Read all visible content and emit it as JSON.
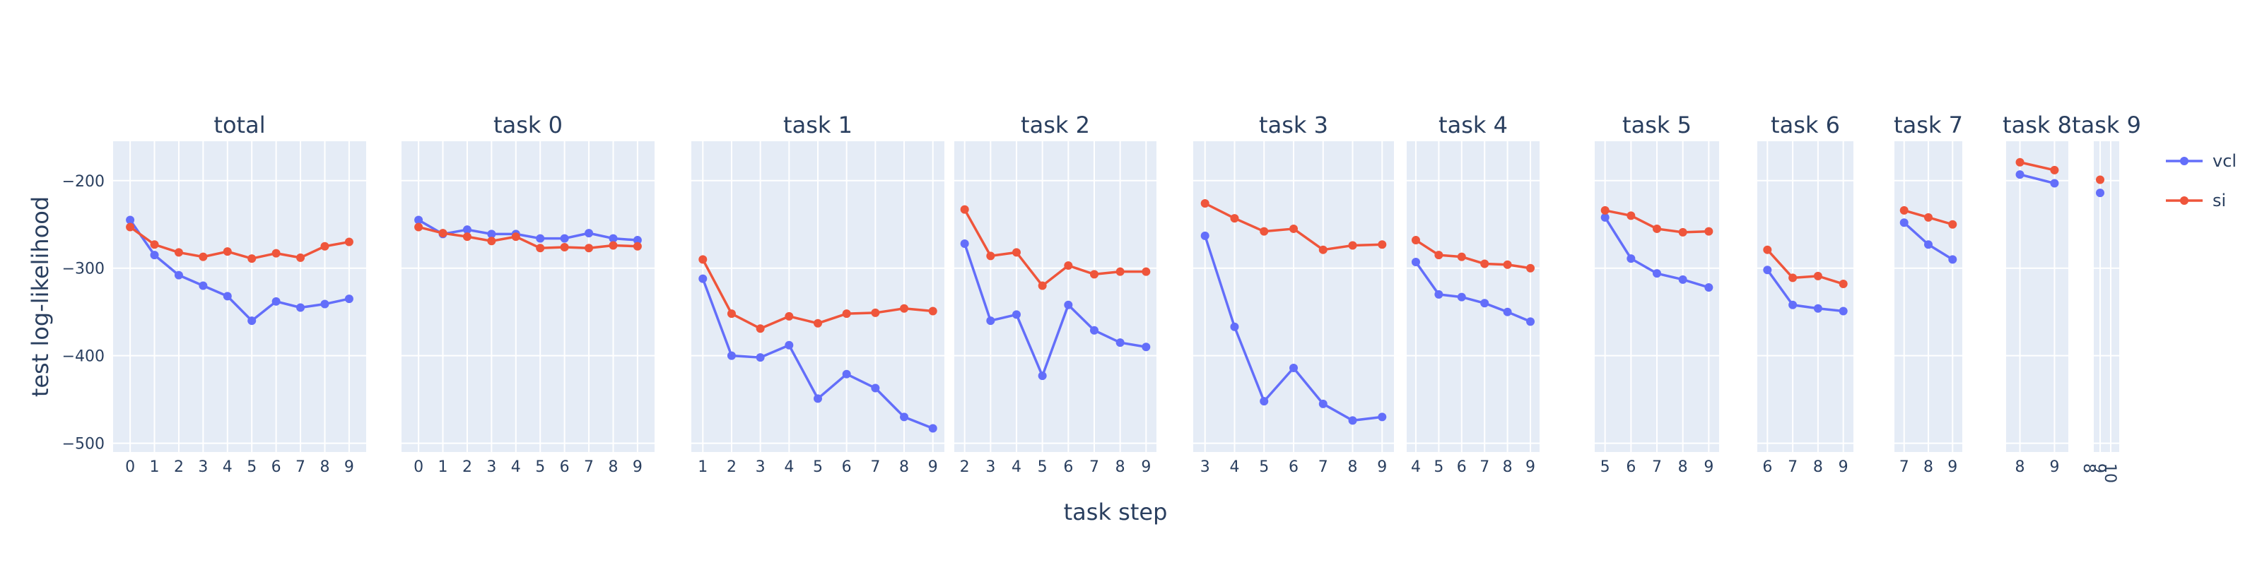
{
  "chart_data": {
    "type": "line",
    "xlabel": "task step",
    "ylabel": "test log-likelihood",
    "ylim": [
      -510,
      -155
    ],
    "yticks": [
      -200,
      -300,
      -400,
      -500
    ],
    "ytick_labels": [
      "−200",
      "−300",
      "−400",
      "−500"
    ],
    "grid": true,
    "legend_position": "top-right",
    "legend": [
      {
        "name": "vcl",
        "color": "#636efa"
      },
      {
        "name": "si",
        "color": "#ef553b"
      }
    ],
    "colors": {
      "vcl": "#636efa",
      "si": "#ef553b",
      "plot_bg": "#e5ecf6",
      "grid": "#ffffff",
      "text": "#2a3f5f"
    },
    "panels": [
      {
        "title": "total",
        "x": [
          0,
          1,
          2,
          3,
          4,
          5,
          6,
          7,
          8,
          9
        ],
        "series": [
          {
            "name": "vcl",
            "values": [
              -245,
              -285,
              -308,
              -320,
              -332,
              -360,
              -338,
              -345,
              -341,
              -335
            ]
          },
          {
            "name": "si",
            "values": [
              -253,
              -273,
              -282,
              -287,
              -281,
              -289,
              -283,
              -288,
              -275,
              -270
            ]
          }
        ]
      },
      {
        "title": "task 0",
        "x": [
          0,
          1,
          2,
          3,
          4,
          5,
          6,
          7,
          8,
          9
        ],
        "series": [
          {
            "name": "vcl",
            "values": [
              -245,
              -261,
              -256,
              -261,
              -261,
              -266,
              -266,
              -260,
              -266,
              -268
            ]
          },
          {
            "name": "si",
            "values": [
              -253,
              -260,
              -264,
              -269,
              -264,
              -277,
              -276,
              -277,
              -274,
              -275
            ]
          }
        ]
      },
      {
        "title": "task 1",
        "x": [
          1,
          2,
          3,
          4,
          5,
          6,
          7,
          8,
          9
        ],
        "series": [
          {
            "name": "vcl",
            "values": [
              -312,
              -400,
              -402,
              -388,
              -449,
              -421,
              -437,
              -470,
              -483
            ]
          },
          {
            "name": "si",
            "values": [
              -290,
              -352,
              -369,
              -355,
              -363,
              -352,
              -351,
              -346,
              -349
            ]
          }
        ]
      },
      {
        "title": "task 2",
        "x": [
          2,
          3,
          4,
          5,
          6,
          7,
          8,
          9
        ],
        "series": [
          {
            "name": "vcl",
            "values": [
              -272,
              -360,
              -353,
              -423,
              -342,
              -371,
              -385,
              -390
            ]
          },
          {
            "name": "si",
            "values": [
              -233,
              -286,
              -282,
              -320,
              -297,
              -307,
              -304,
              -304
            ]
          }
        ]
      },
      {
        "title": "task 3",
        "x": [
          3,
          4,
          5,
          6,
          7,
          8,
          9
        ],
        "series": [
          {
            "name": "vcl",
            "values": [
              -263,
              -367,
              -452,
              -414,
              -455,
              -474,
              -470
            ]
          },
          {
            "name": "si",
            "values": [
              -226,
              -243,
              -258,
              -255,
              -279,
              -274,
              -273
            ]
          }
        ]
      },
      {
        "title": "task 4",
        "x": [
          4,
          5,
          6,
          7,
          8,
          9
        ],
        "series": [
          {
            "name": "vcl",
            "values": [
              -293,
              -330,
              -333,
              -340,
              -350,
              -361
            ]
          },
          {
            "name": "si",
            "values": [
              -268,
              -285,
              -287,
              -295,
              -296,
              -300
            ]
          }
        ]
      },
      {
        "title": "task 5",
        "x": [
          5,
          6,
          7,
          8,
          9
        ],
        "series": [
          {
            "name": "vcl",
            "values": [
              -242,
              -289,
              -306,
              -313,
              -322
            ]
          },
          {
            "name": "si",
            "values": [
              -234,
              -240,
              -255,
              -259,
              -258
            ]
          }
        ]
      },
      {
        "title": "task 6",
        "x": [
          6,
          7,
          8,
          9
        ],
        "series": [
          {
            "name": "vcl",
            "values": [
              -302,
              -342,
              -346,
              -349
            ]
          },
          {
            "name": "si",
            "values": [
              -279,
              -311,
              -309,
              -318
            ]
          }
        ]
      },
      {
        "title": "task 7",
        "x": [
          7,
          8,
          9
        ],
        "series": [
          {
            "name": "vcl",
            "values": [
              -248,
              -273,
              -290
            ]
          },
          {
            "name": "si",
            "values": [
              -234,
              -242,
              -250
            ]
          }
        ]
      },
      {
        "title": "task 8",
        "x": [
          8,
          9
        ],
        "series": [
          {
            "name": "vcl",
            "values": [
              -193,
              -203
            ]
          },
          {
            "name": "si",
            "values": [
              -179,
              -188
            ]
          }
        ]
      },
      {
        "title": "task 9",
        "x": [
          9
        ],
        "tick_labels_rotated": [
          "8",
          "9",
          "10"
        ],
        "series": [
          {
            "name": "vcl",
            "values": [
              -214
            ]
          },
          {
            "name": "si",
            "values": [
              -199
            ]
          }
        ]
      }
    ]
  }
}
